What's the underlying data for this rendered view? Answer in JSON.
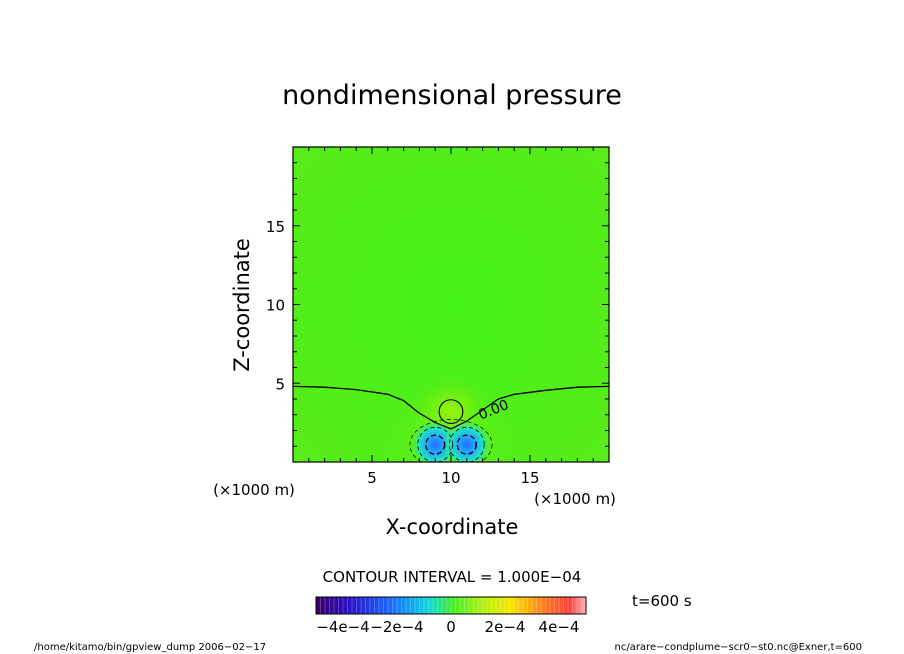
{
  "chart_data": {
    "type": "heatmap",
    "title": "nondimensional pressure",
    "xlabel": "X-coordinate",
    "ylabel": "Z-coordinate",
    "x_unit": "(×1000 m)",
    "y_unit": "(×1000 m)",
    "xlim": [
      0,
      20
    ],
    "ylim": [
      0,
      20
    ],
    "x_ticks": [
      5,
      10,
      15
    ],
    "y_ticks": [
      5,
      10,
      15
    ],
    "x_minor_step": 1,
    "y_minor_step": 1,
    "contour_interval_text": "CONTOUR INTERVAL = 1.000E−04",
    "contour_label": "0.00",
    "features": [
      {
        "kind": "positive_max",
        "x": 10,
        "z": 3.2,
        "value": 0.0001
      },
      {
        "kind": "negative_min",
        "x": 9.0,
        "z": 1.1,
        "value": -0.0003
      },
      {
        "kind": "negative_min",
        "x": 11.0,
        "z": 1.1,
        "value": -0.0003
      }
    ],
    "zero_contour": [
      [
        0,
        4.8
      ],
      [
        2,
        4.75
      ],
      [
        4,
        4.6
      ],
      [
        6,
        4.3
      ],
      [
        7,
        3.9
      ],
      [
        8,
        3.1
      ],
      [
        9,
        2.5
      ],
      [
        10,
        2.1
      ],
      [
        11,
        2.6
      ],
      [
        12,
        3.3
      ],
      [
        13,
        4.0
      ],
      [
        14,
        4.3
      ],
      [
        16,
        4.55
      ],
      [
        18,
        4.75
      ],
      [
        20,
        4.8
      ]
    ],
    "colorbar": {
      "range": [
        -0.0005,
        0.0005
      ],
      "tick_labels": [
        "−4e−4",
        "−2e−4",
        "0",
        "2e−4",
        "4e−4"
      ],
      "tick_values": [
        -0.0004,
        -0.0002,
        0,
        0.0002,
        0.0004
      ]
    },
    "time_label": "t=600 s",
    "grid": false
  },
  "footer": {
    "left": "/home/kitamo/bin/gpview_dump  2006−02−17",
    "right": "nc/arare−condplume−scr0−st0.nc@Exner,t=600"
  }
}
